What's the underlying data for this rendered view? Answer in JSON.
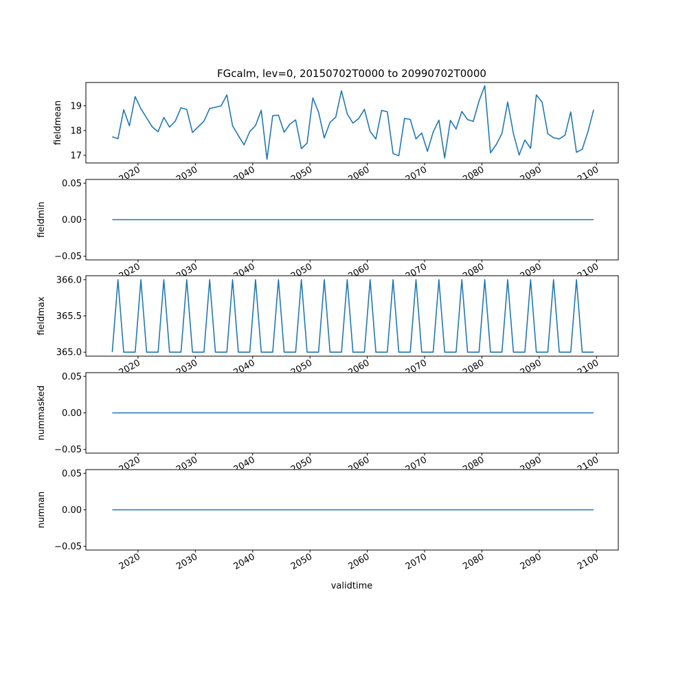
{
  "chart_data": {
    "type": "line",
    "title": "FGcalm, lev=0, 20150702T0000 to 20990702T0000",
    "xlabel": "validtime",
    "x_start_year": 2015,
    "x_ticks": [
      "2020",
      "2030",
      "2040",
      "2050",
      "2060",
      "2070",
      "2080",
      "2090",
      "2100"
    ],
    "x_tick_values": [
      2020,
      2030,
      2040,
      2050,
      2060,
      2070,
      2080,
      2090,
      2100
    ],
    "xlim": [
      2010.9,
      2103.8
    ],
    "line_color": "#1f77b4",
    "panels": [
      {
        "ylabel": "fieldmean",
        "ylim": [
          16.69,
          19.94
        ],
        "yticks": [
          17,
          18,
          19
        ],
        "ytick_labels": [
          "17",
          "18",
          "19"
        ],
        "values": [
          17.75,
          17.67,
          18.84,
          18.19,
          19.37,
          18.88,
          18.51,
          18.14,
          17.95,
          18.53,
          18.14,
          18.38,
          18.92,
          18.85,
          17.92,
          18.15,
          18.38,
          18.89,
          18.94,
          19.0,
          19.44,
          18.19,
          17.8,
          17.42,
          17.96,
          18.2,
          18.82,
          16.84,
          18.6,
          18.62,
          17.93,
          18.26,
          18.43,
          17.27,
          17.49,
          19.32,
          18.74,
          17.7,
          18.33,
          18.54,
          19.61,
          18.67,
          18.3,
          18.48,
          18.86,
          17.96,
          17.66,
          18.81,
          18.76,
          17.07,
          16.98,
          18.49,
          18.45,
          17.66,
          17.9,
          17.16,
          17.94,
          18.42,
          16.89,
          18.41,
          18.06,
          18.77,
          18.44,
          18.37,
          19.19,
          19.81,
          17.1,
          17.43,
          17.88,
          19.15,
          17.88,
          17.01,
          17.62,
          17.28,
          19.44,
          19.15,
          17.87,
          17.71,
          17.66,
          17.81,
          18.75,
          17.12,
          17.24,
          17.95,
          18.84
        ]
      },
      {
        "ylabel": "fieldmin",
        "ylim": [
          -0.055,
          0.055
        ],
        "yticks": [
          -0.05,
          0,
          0.05
        ],
        "ytick_labels": [
          "−0.05",
          "0.00",
          "0.05"
        ],
        "constant": 0
      },
      {
        "ylabel": "fieldmax",
        "ylim": [
          364.945,
          366.055
        ],
        "yticks": [
          365,
          365.5,
          366
        ],
        "ytick_labels": [
          "365.0",
          "365.5",
          "366.0"
        ],
        "leap_pattern": [
          365,
          366
        ]
      },
      {
        "ylabel": "nummasked",
        "ylim": [
          -0.055,
          0.055
        ],
        "yticks": [
          -0.05,
          0,
          0.05
        ],
        "ytick_labels": [
          "−0.05",
          "0.00",
          "0.05"
        ],
        "constant": 0
      },
      {
        "ylabel": "numnan",
        "ylim": [
          -0.055,
          0.055
        ],
        "yticks": [
          -0.05,
          0,
          0.05
        ],
        "ytick_labels": [
          "−0.05",
          "0.00",
          "0.05"
        ],
        "constant": 0
      }
    ]
  }
}
